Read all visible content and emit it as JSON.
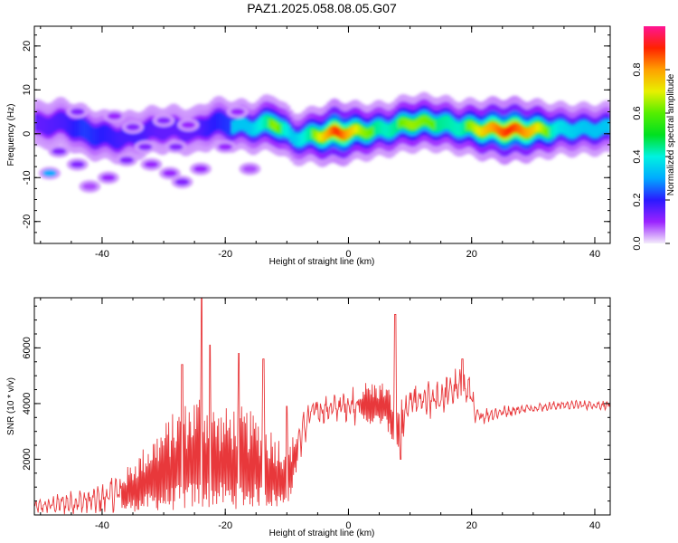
{
  "chart_data": [
    {
      "type": "heatmap",
      "title": "PAZ1.2025.058.08.05.G07",
      "xlabel": "Height of straight line (km)",
      "ylabel": "Frequency (Hz)",
      "xlim": [
        -51,
        42.5
      ],
      "ylim": [
        -25,
        24.5
      ],
      "x_ticks": [
        -40,
        -20,
        0,
        20,
        40
      ],
      "y_ticks": [
        -20,
        -10,
        0,
        10,
        20
      ],
      "colorbar": {
        "label": "Normalized spectral amplitude",
        "ticks": [
          "0.0",
          "0.2",
          "0.4",
          "0.6",
          "0.8"
        ],
        "range": [
          0,
          1
        ]
      },
      "ridge": [
        {
          "x": -50,
          "y": 2,
          "a": 0.3
        },
        {
          "x": -46,
          "y": 2.5,
          "a": 0.35
        },
        {
          "x": -43,
          "y": 0.5,
          "a": 0.45
        },
        {
          "x": -40,
          "y": -0.5,
          "a": 0.4
        },
        {
          "x": -37,
          "y": -1,
          "a": 0.35
        },
        {
          "x": -34,
          "y": 0,
          "a": 0.35
        },
        {
          "x": -31,
          "y": 1,
          "a": 0.3
        },
        {
          "x": -28,
          "y": 1,
          "a": 0.3
        },
        {
          "x": -25,
          "y": 0.5,
          "a": 0.3
        },
        {
          "x": -22,
          "y": 2.5,
          "a": 0.4
        },
        {
          "x": -19,
          "y": 2,
          "a": 0.45
        },
        {
          "x": -16,
          "y": 1.5,
          "a": 0.45
        },
        {
          "x": -12,
          "y": 2.5,
          "a": 0.65
        },
        {
          "x": -9,
          "y": -1,
          "a": 0.45
        },
        {
          "x": -6,
          "y": -0.5,
          "a": 0.6
        },
        {
          "x": -2,
          "y": 0.2,
          "a": 0.9
        },
        {
          "x": 2,
          "y": 0.5,
          "a": 0.65
        },
        {
          "x": 6,
          "y": 1,
          "a": 0.55
        },
        {
          "x": 10,
          "y": 2.5,
          "a": 0.65
        },
        {
          "x": 14,
          "y": 2.5,
          "a": 0.6
        },
        {
          "x": 18,
          "y": 1.5,
          "a": 0.55
        },
        {
          "x": 22,
          "y": 1,
          "a": 0.75
        },
        {
          "x": 26,
          "y": 0.8,
          "a": 0.9
        },
        {
          "x": 30,
          "y": 0.8,
          "a": 0.75
        },
        {
          "x": 34,
          "y": 1,
          "a": 0.5
        },
        {
          "x": 38,
          "y": 1,
          "a": 0.45
        },
        {
          "x": 42,
          "y": 1.2,
          "a": 0.45
        }
      ],
      "blobs": [
        {
          "x": -48.5,
          "y": -9,
          "a": 0.3
        },
        {
          "x": -47,
          "y": -4,
          "a": 0.12
        },
        {
          "x": -44,
          "y": -7,
          "a": 0.12
        },
        {
          "x": -39,
          "y": -10,
          "a": 0.1
        },
        {
          "x": -36,
          "y": -6,
          "a": 0.12
        },
        {
          "x": -32,
          "y": -7,
          "a": 0.1
        },
        {
          "x": -29,
          "y": -9,
          "a": 0.1
        },
        {
          "x": -27,
          "y": -11,
          "a": 0.12
        },
        {
          "x": -24,
          "y": -8,
          "a": 0.1
        },
        {
          "x": -42,
          "y": -12,
          "a": 0.08
        },
        {
          "x": -44,
          "y": 5,
          "a": 0.12
        },
        {
          "x": -38,
          "y": 4,
          "a": 0.1
        },
        {
          "x": -30,
          "y": 3,
          "a": 0.12
        },
        {
          "x": -26,
          "y": 2,
          "a": 0.1
        },
        {
          "x": -18,
          "y": 5,
          "a": 0.1
        },
        {
          "x": -35,
          "y": 1.5,
          "a": 0.12
        },
        {
          "x": -28,
          "y": -3,
          "a": 0.12
        },
        {
          "x": -33,
          "y": -3,
          "a": 0.12
        },
        {
          "x": -20,
          "y": -3,
          "a": 0.1
        },
        {
          "x": -16,
          "y": -8,
          "a": 0.08
        }
      ]
    },
    {
      "type": "line",
      "xlabel": "Height of straight line (km)",
      "ylabel": "SNR (10 * v/v)",
      "xlim": [
        -51,
        42.5
      ],
      "ylim": [
        0,
        7800
      ],
      "x_ticks": [
        -40,
        -20,
        0,
        20,
        40
      ],
      "y_ticks": [
        2000,
        4000,
        6000
      ],
      "color": "#e8383b",
      "envelope": [
        {
          "x": -51,
          "lo": 50,
          "hi": 500
        },
        {
          "x": -46,
          "lo": 50,
          "hi": 800
        },
        {
          "x": -41,
          "lo": 50,
          "hi": 1000
        },
        {
          "x": -36,
          "lo": 100,
          "hi": 1700
        },
        {
          "x": -32,
          "lo": 150,
          "hi": 2800
        },
        {
          "x": -28,
          "lo": 150,
          "hi": 3800
        },
        {
          "x": -24,
          "lo": 200,
          "hi": 4500
        },
        {
          "x": -21,
          "lo": 300,
          "hi": 3800
        },
        {
          "x": -18,
          "lo": 200,
          "hi": 4000
        },
        {
          "x": -14,
          "lo": 300,
          "hi": 3500
        },
        {
          "x": -11,
          "lo": 200,
          "hi": 2800
        },
        {
          "x": -9.5,
          "lo": 500,
          "hi": 2600
        },
        {
          "x": -8,
          "lo": 2000,
          "hi": 3400
        },
        {
          "x": -6,
          "lo": 3200,
          "hi": 4200
        },
        {
          "x": -2,
          "lo": 3400,
          "hi": 4300
        },
        {
          "x": 2,
          "lo": 3300,
          "hi": 4800
        },
        {
          "x": 6,
          "lo": 3200,
          "hi": 4800
        },
        {
          "x": 8,
          "lo": 2200,
          "hi": 4000
        },
        {
          "x": 10,
          "lo": 3400,
          "hi": 4600
        },
        {
          "x": 14,
          "lo": 3400,
          "hi": 4800
        },
        {
          "x": 17,
          "lo": 3800,
          "hi": 5200
        },
        {
          "x": 20,
          "lo": 3900,
          "hi": 5000
        },
        {
          "x": 20.5,
          "lo": 3200,
          "hi": 3800
        },
        {
          "x": 25,
          "lo": 3500,
          "hi": 3900
        },
        {
          "x": 30,
          "lo": 3700,
          "hi": 4000
        },
        {
          "x": 35,
          "lo": 3800,
          "hi": 4100
        },
        {
          "x": 42.5,
          "lo": 3800,
          "hi": 4100
        }
      ],
      "spikes": [
        {
          "x": -27,
          "y": 5400
        },
        {
          "x": -23.8,
          "y": 7800
        },
        {
          "x": -22.5,
          "y": 6100
        },
        {
          "x": -17.8,
          "y": 5800
        },
        {
          "x": -13.8,
          "y": 5600
        },
        {
          "x": -10,
          "y": 3900
        },
        {
          "x": 7.6,
          "y": 7200
        },
        {
          "x": 8.5,
          "y": 2000
        },
        {
          "x": 18.5,
          "y": 5600
        }
      ]
    }
  ]
}
